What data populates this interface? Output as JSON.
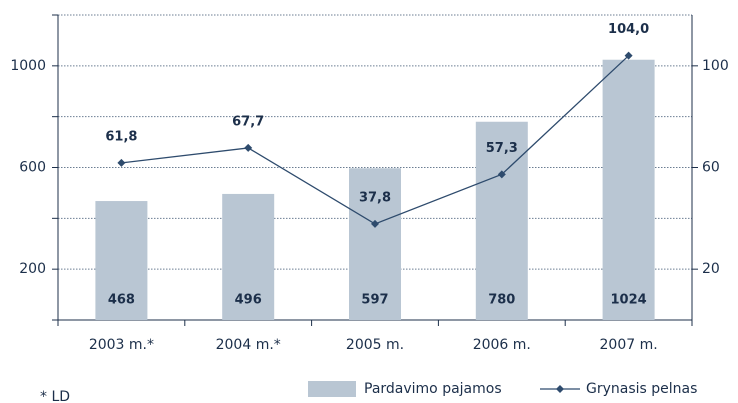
{
  "chart_data": {
    "type": "bar_line",
    "categories": [
      "2003 m.*",
      "2004 m.*",
      "2005 m.",
      "2006 m.",
      "2007 m."
    ],
    "series": [
      {
        "name": "Pardavimo pajamos",
        "color": "#b9c6d3",
        "values": [
          468,
          496,
          597,
          780,
          1024
        ]
      },
      {
        "name": "Grynasis pelnas",
        "color": "#2e4b6d",
        "axis": "y2",
        "values": [
          61.8,
          67.7,
          37.8,
          57.3,
          104.0
        ],
        "value_labels": [
          "61,8",
          "67,7",
          "37,8",
          "57,3",
          "104,0"
        ]
      }
    ],
    "ylim": [
      0,
      1200
    ],
    "yticks": [
      200,
      600,
      1000
    ],
    "minor_yticks": [
      0,
      400,
      800,
      1200
    ],
    "y2lim": [
      0,
      120
    ],
    "y2ticks": [
      20,
      60,
      100
    ],
    "grid": true,
    "legend": "bottom",
    "footnote": "* LD"
  }
}
